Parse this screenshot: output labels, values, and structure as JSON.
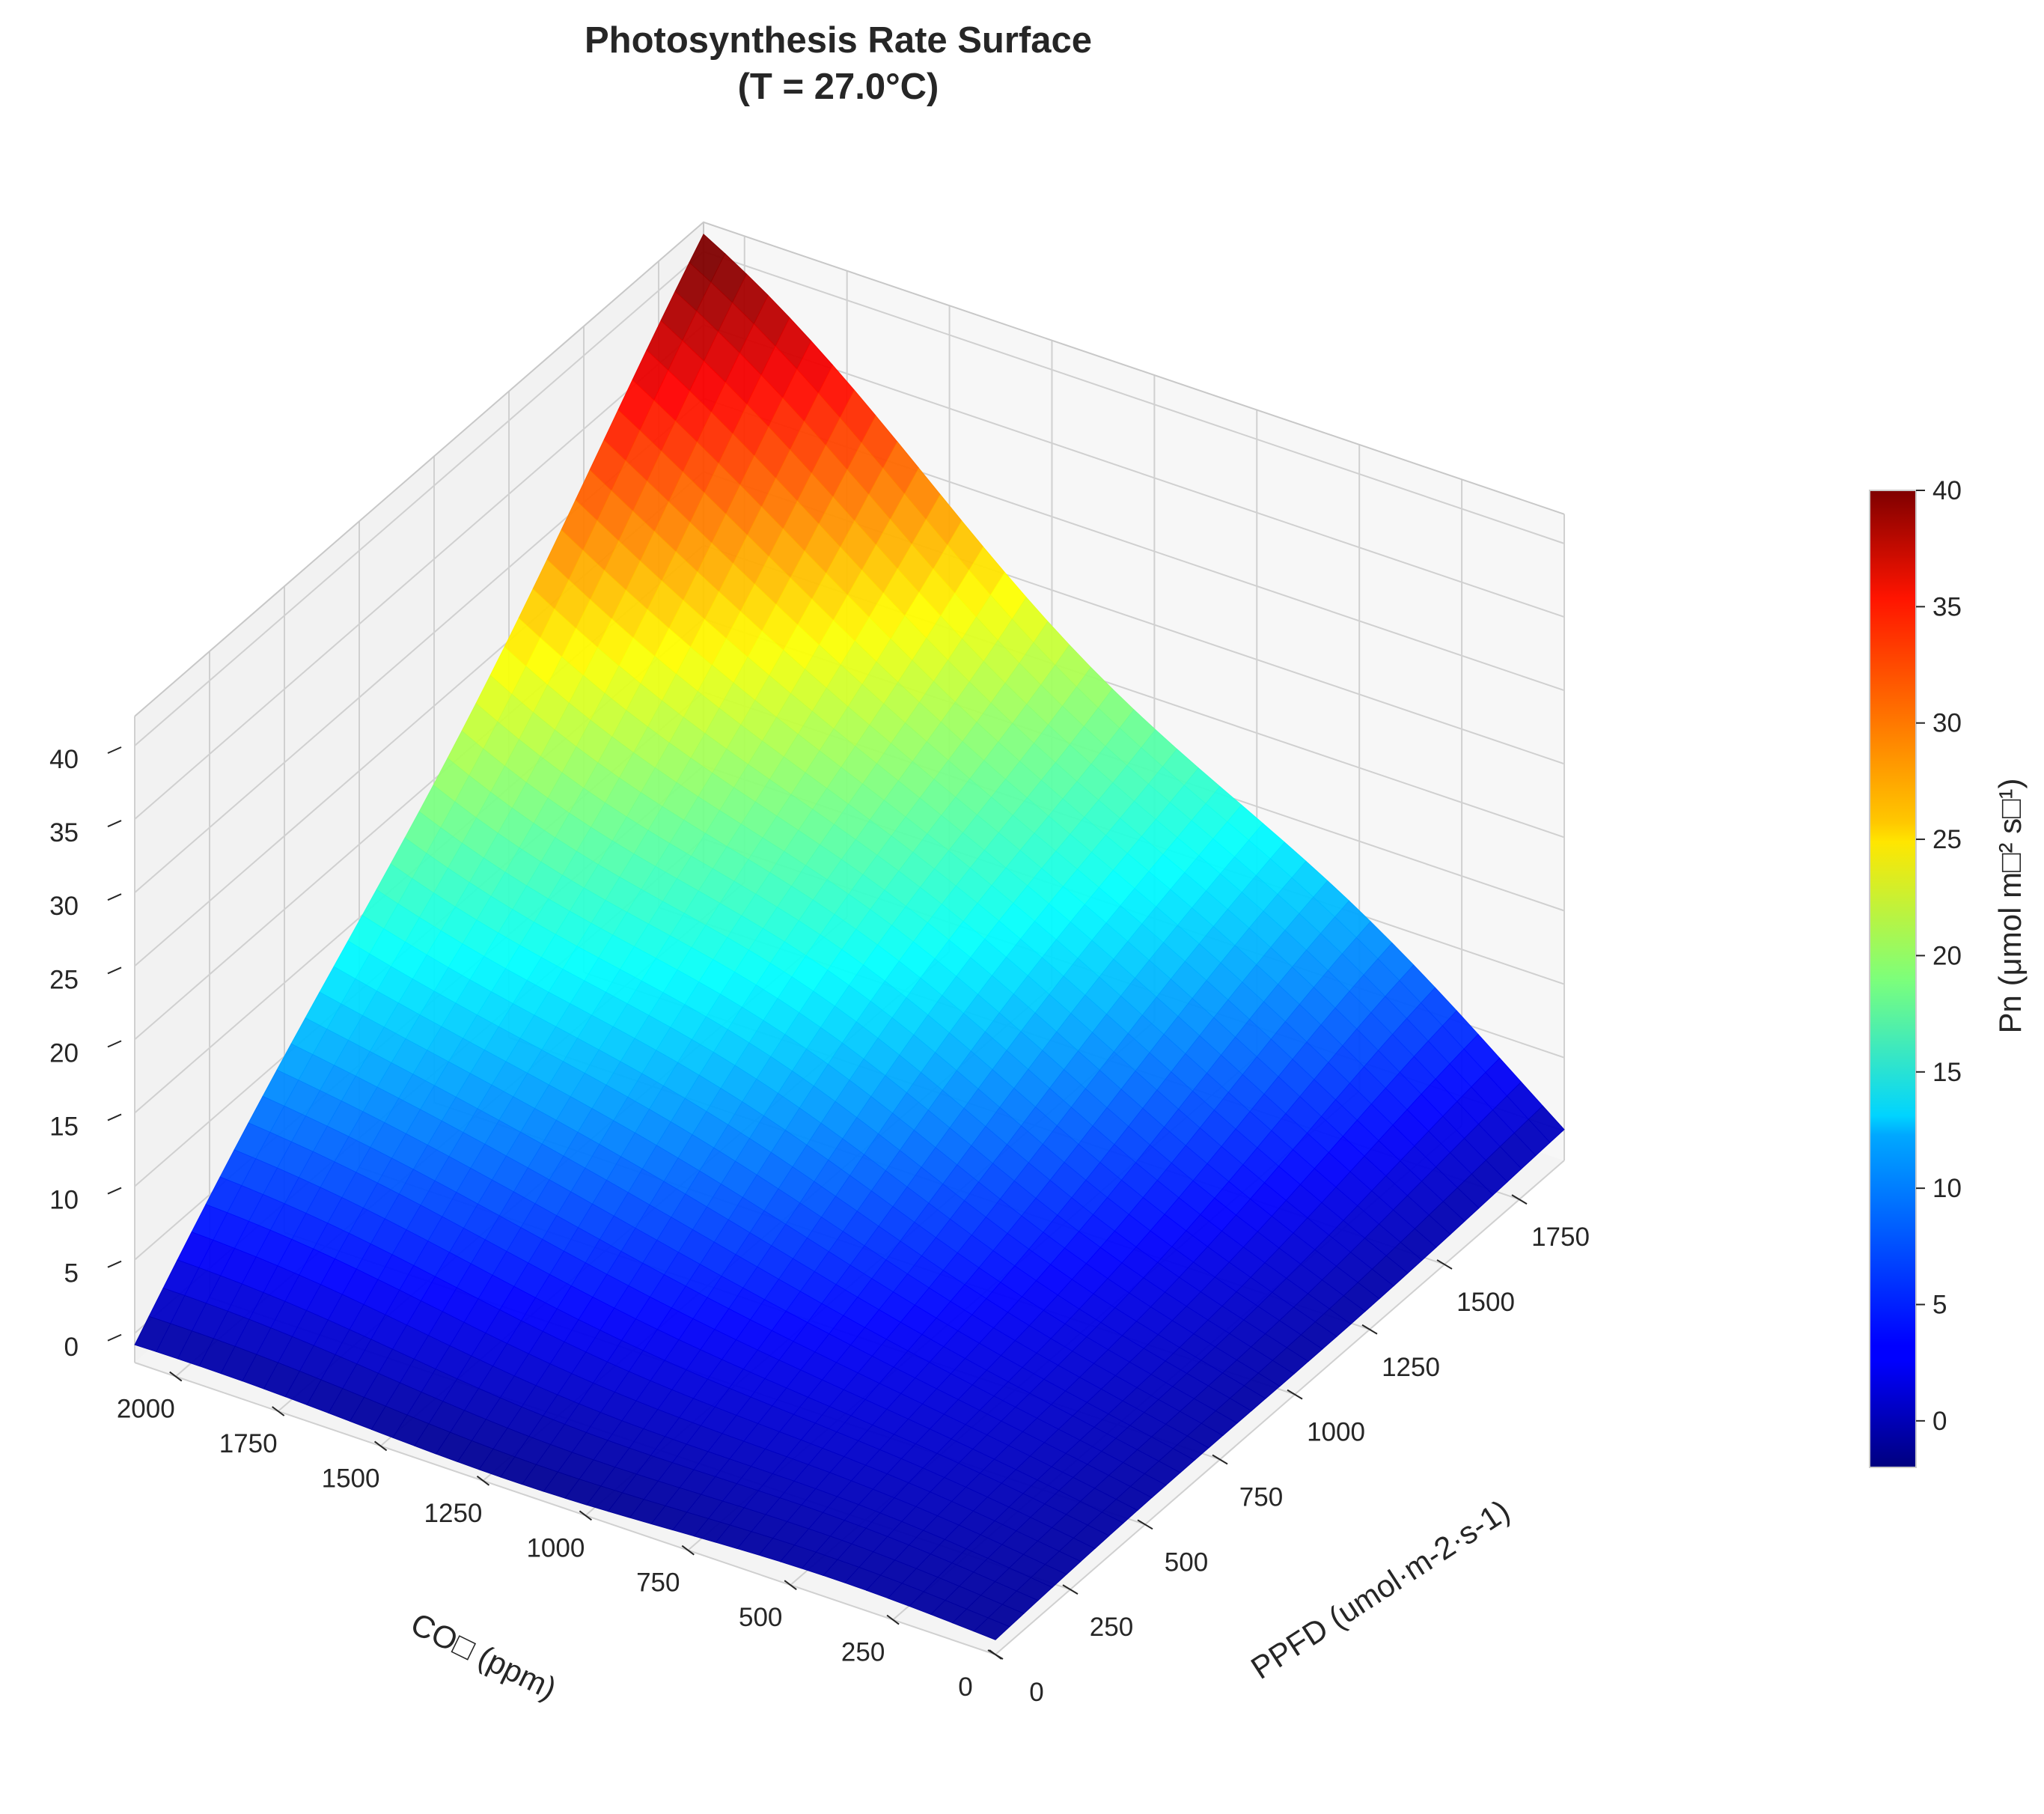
{
  "chart_data": {
    "type": "surface",
    "title": "Photosynthesis Rate Surface",
    "subtitle": "(T = 27.0°C)",
    "xlabel": "CO□ (ppm)",
    "ylabel": "PPFD (umol·m-2·s-1)",
    "zlabel": "",
    "colorbar_label": "Pn (μmol m□² s□¹)",
    "colormap": "jet",
    "x": {
      "range": [
        0,
        2100
      ],
      "ticks": [
        0,
        250,
        500,
        750,
        1000,
        1250,
        1500,
        1750,
        2000
      ],
      "tick_labels": [
        "0",
        "250",
        "500",
        "750",
        "1000",
        "1250",
        "1500",
        "1750",
        "2000"
      ]
    },
    "y": {
      "range": [
        0,
        1900
      ],
      "ticks": [
        0,
        250,
        500,
        750,
        1000,
        1250,
        1500,
        1750
      ],
      "tick_labels": [
        "0",
        "250",
        "500",
        "750",
        "1000",
        "1250",
        "1500",
        "1750"
      ]
    },
    "z": {
      "range": [
        -2,
        42
      ],
      "ticks": [
        0,
        5,
        10,
        15,
        20,
        25,
        30,
        35,
        40
      ],
      "tick_labels": [
        "0",
        "5",
        "10",
        "15",
        "20",
        "25",
        "30",
        "35",
        "40"
      ]
    },
    "colorbar": {
      "range": [
        -2,
        40
      ],
      "ticks": [
        0,
        5,
        10,
        15,
        20,
        25,
        30,
        35,
        40
      ],
      "tick_labels": [
        "0",
        "5",
        "10",
        "15",
        "20",
        "25",
        "30",
        "35",
        "40"
      ]
    },
    "corner_values": {
      "co2_0_ppfd_0": -1,
      "co2_2100_ppfd_0": -1,
      "co2_0_ppfd_1900": 0,
      "co2_2100_ppfd_1900": 40
    },
    "grid": true,
    "colorbar_position": "right"
  }
}
